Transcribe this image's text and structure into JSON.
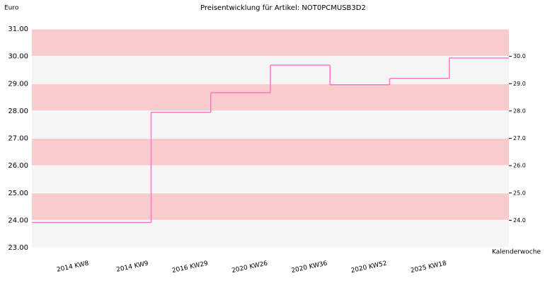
{
  "chart_data": {
    "type": "step",
    "title": "Preisentwicklung für Artikel: NOT0PCMUSB3D2",
    "y_label": "Euro",
    "x_label": "Kalenderwoche",
    "categories": [
      "2014 KW8",
      "2014 KW9",
      "2016 KW29",
      "2020 KW26",
      "2020 KW36",
      "2020 KW52",
      "2025 KW18"
    ],
    "values": [
      23.92,
      27.95,
      28.67,
      29.68,
      28.96,
      29.19,
      29.94
    ],
    "color": "#ff77cc",
    "band_colors": [
      "#f8cccc",
      "#f5f5f5"
    ],
    "ylim": [
      23,
      31
    ],
    "yticks": [
      {
        "value": 23,
        "label": "23.00"
      },
      {
        "value": 24,
        "label": "24.00"
      },
      {
        "value": 25,
        "label": "25.00"
      },
      {
        "value": 26,
        "label": "26.00"
      },
      {
        "value": 27,
        "label": "27.00"
      },
      {
        "value": 28,
        "label": "28.00"
      },
      {
        "value": 29,
        "label": "29.00"
      },
      {
        "value": 30,
        "label": "30.00"
      },
      {
        "value": 31,
        "label": "31.00"
      }
    ],
    "y2lim": [
      23,
      31
    ],
    "y2ticks": [
      {
        "value": 24,
        "label": "24.0"
      },
      {
        "value": 25,
        "label": "25.0"
      },
      {
        "value": 26,
        "label": "26.0"
      },
      {
        "value": 27,
        "label": "27.0"
      },
      {
        "value": 28,
        "label": "28.0"
      },
      {
        "value": 29,
        "label": "29.0"
      },
      {
        "value": 30,
        "label": "30.0"
      }
    ]
  }
}
